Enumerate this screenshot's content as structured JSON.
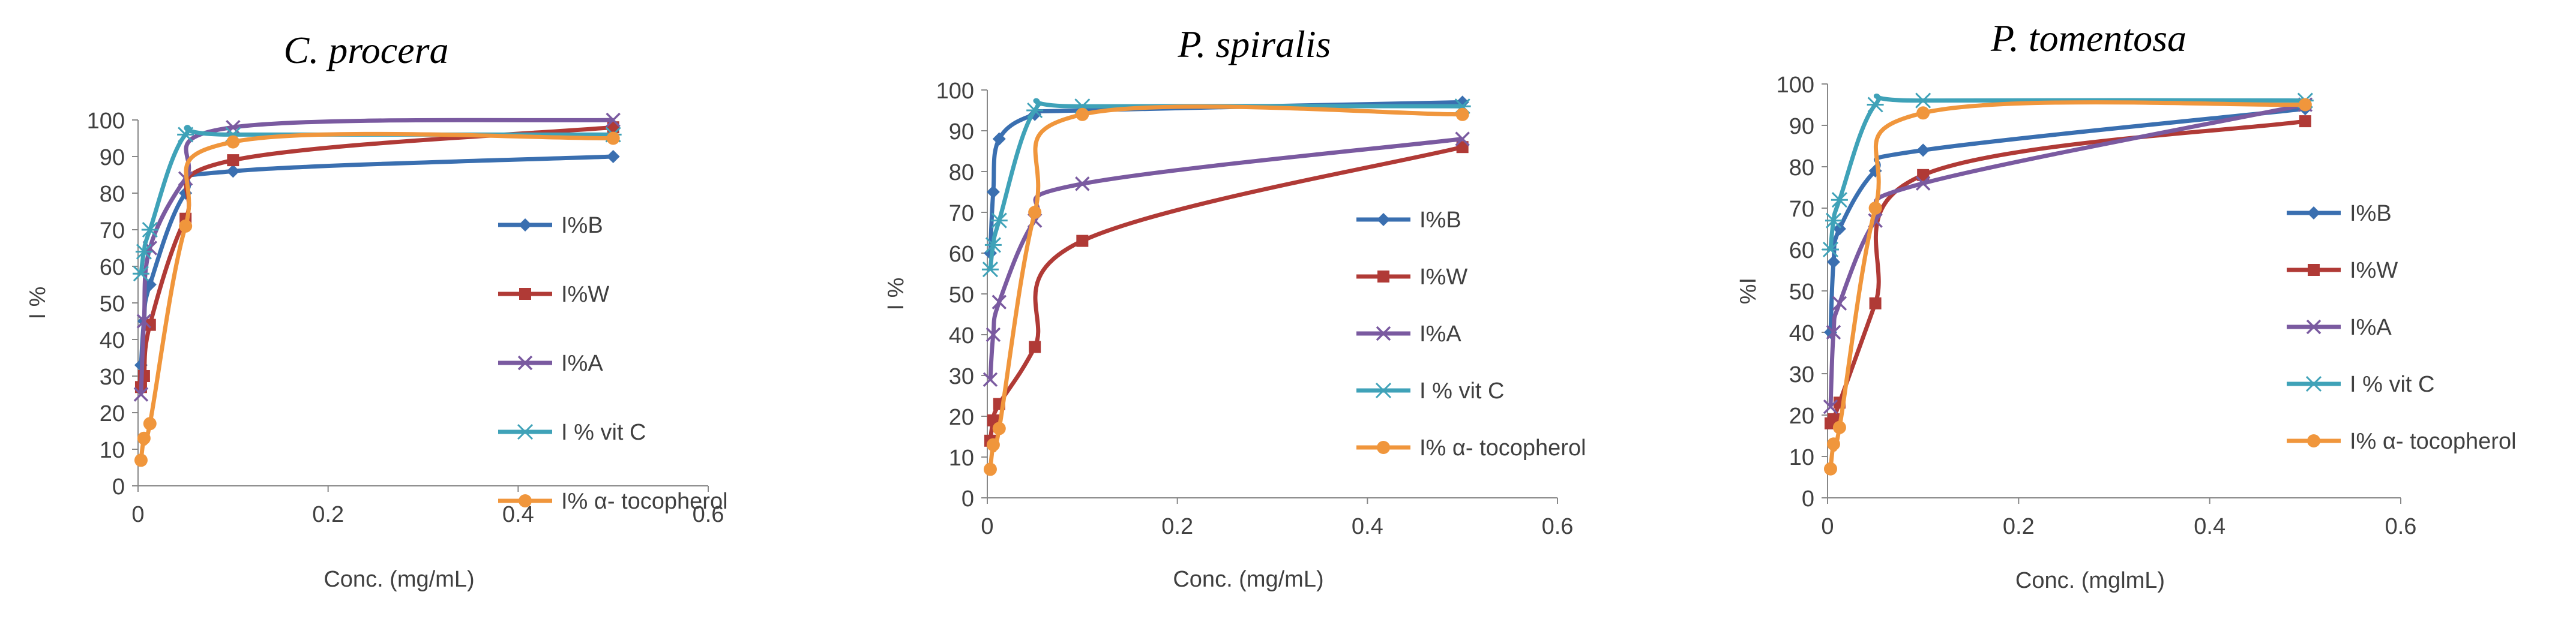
{
  "chart_data": [
    {
      "type": "line",
      "title": "C. procera",
      "xlabel": "Conc. (mg/mL)",
      "ylabel": "I %",
      "xlim": [
        0,
        0.6
      ],
      "ylim": [
        0,
        100
      ],
      "xticks": [
        0,
        0.2,
        0.4,
        0.6
      ],
      "xtick_labels": [
        "0",
        "0.2",
        "0.4",
        "0.6"
      ],
      "yticks": [
        0,
        10,
        20,
        30,
        40,
        50,
        60,
        70,
        80,
        90,
        100
      ],
      "ytick_labels": [
        "0",
        "10",
        "20",
        "30",
        "40",
        "50",
        "60",
        "70",
        "80",
        "90",
        "100"
      ],
      "legend_position": "right",
      "series": [
        {
          "name": "I%B",
          "color": "#3a6fb0",
          "marker": "diamond",
          "x": [
            0.003125,
            0.00625,
            0.0125,
            0.05,
            0.1,
            0.5
          ],
          "y": [
            33,
            45,
            55,
            80,
            86,
            90
          ]
        },
        {
          "name": "I%W",
          "color": "#b03a36",
          "marker": "square",
          "x": [
            0.003125,
            0.00625,
            0.0125,
            0.05,
            0.1,
            0.5
          ],
          "y": [
            27,
            30,
            44,
            73,
            89,
            98
          ]
        },
        {
          "name": "I%A",
          "color": "#7a5aa0",
          "marker": "x",
          "x": [
            0.003125,
            0.00625,
            0.0125,
            0.05,
            0.1,
            0.5
          ],
          "y": [
            25,
            45,
            65,
            84,
            98,
            100
          ]
        },
        {
          "name": "I % vit C",
          "color": "#3fa2b8",
          "marker": "asterisk",
          "x": [
            0.003125,
            0.00625,
            0.0125,
            0.05,
            0.1,
            0.5
          ],
          "y": [
            58,
            64,
            70,
            96,
            96,
            96
          ]
        },
        {
          "name": "I% α- tocopherol",
          "color": "#f0963c",
          "marker": "circle",
          "x": [
            0.003125,
            0.00625,
            0.0125,
            0.05,
            0.1,
            0.5
          ],
          "y": [
            7,
            13,
            17,
            71,
            94,
            95
          ]
        }
      ]
    },
    {
      "type": "line",
      "title": "P. spiralis",
      "xlabel": "Conc. (mg/mL)",
      "ylabel": "I %",
      "xlim": [
        0,
        0.6
      ],
      "ylim": [
        0,
        100
      ],
      "xticks": [
        0,
        0.2,
        0.4,
        0.6
      ],
      "xtick_labels": [
        "0",
        "0.2",
        "0.4",
        "0.6"
      ],
      "yticks": [
        0,
        10,
        20,
        30,
        40,
        50,
        60,
        70,
        80,
        90,
        100
      ],
      "ytick_labels": [
        "0",
        "10",
        "20",
        "30",
        "40",
        "50",
        "60",
        "70",
        "80",
        "90",
        "100"
      ],
      "legend_position": "right",
      "series": [
        {
          "name": "I%B",
          "color": "#3a6fb0",
          "marker": "diamond",
          "x": [
            0.003125,
            0.00625,
            0.0125,
            0.05,
            0.1,
            0.5
          ],
          "y": [
            60,
            75,
            88,
            94,
            95,
            97
          ]
        },
        {
          "name": "I%W",
          "color": "#b03a36",
          "marker": "square",
          "x": [
            0.003125,
            0.00625,
            0.0125,
            0.05,
            0.1,
            0.5
          ],
          "y": [
            14,
            19,
            23,
            37,
            63,
            86
          ]
        },
        {
          "name": "I%A",
          "color": "#7a5aa0",
          "marker": "x",
          "x": [
            0.003125,
            0.00625,
            0.0125,
            0.05,
            0.1,
            0.5
          ],
          "y": [
            29,
            40,
            48,
            68,
            77,
            88
          ]
        },
        {
          "name": "I % vit C",
          "color": "#3fa2b8",
          "marker": "asterisk",
          "x": [
            0.003125,
            0.00625,
            0.0125,
            0.05,
            0.1,
            0.5
          ],
          "y": [
            56,
            62,
            68,
            95,
            96,
            96
          ]
        },
        {
          "name": "I% α- tocopherol",
          "color": "#f0963c",
          "marker": "circle",
          "x": [
            0.003125,
            0.00625,
            0.0125,
            0.05,
            0.1,
            0.5
          ],
          "y": [
            7,
            13,
            17,
            70,
            94,
            94
          ]
        }
      ]
    },
    {
      "type": "line",
      "title": "P. tomentosa",
      "xlabel": "Conc. (mglmL)",
      "ylabel": "%I",
      "xlim": [
        0,
        0.6
      ],
      "ylim": [
        0,
        100
      ],
      "xticks": [
        0,
        0.2,
        0.4,
        0.6
      ],
      "xtick_labels": [
        "0",
        "0.2",
        "0.4",
        "0.6"
      ],
      "yticks": [
        0,
        10,
        20,
        30,
        40,
        50,
        60,
        70,
        80,
        90,
        100
      ],
      "ytick_labels": [
        "0",
        "10",
        "20",
        "30",
        "40",
        "50",
        "60",
        "70",
        "80",
        "90",
        "100"
      ],
      "legend_position": "right",
      "series": [
        {
          "name": "I%B",
          "color": "#3a6fb0",
          "marker": "diamond",
          "x": [
            0.003125,
            0.00625,
            0.0125,
            0.05,
            0.1,
            0.5
          ],
          "y": [
            40,
            57,
            65,
            79,
            84,
            94
          ]
        },
        {
          "name": "I%W",
          "color": "#b03a36",
          "marker": "square",
          "x": [
            0.003125,
            0.00625,
            0.0125,
            0.05,
            0.1,
            0.5
          ],
          "y": [
            18,
            19,
            23,
            47,
            78,
            91
          ]
        },
        {
          "name": "I%A",
          "color": "#7a5aa0",
          "marker": "x",
          "x": [
            0.003125,
            0.00625,
            0.0125,
            0.05,
            0.1,
            0.5
          ],
          "y": [
            22,
            40,
            47,
            67,
            76,
            95
          ]
        },
        {
          "name": "I % vit C",
          "color": "#3fa2b8",
          "marker": "asterisk",
          "x": [
            0.003125,
            0.00625,
            0.0125,
            0.05,
            0.1,
            0.5
          ],
          "y": [
            60,
            67,
            72,
            95,
            96,
            96
          ]
        },
        {
          "name": "I% α- tocopherol",
          "color": "#f0963c",
          "marker": "circle",
          "x": [
            0.003125,
            0.00625,
            0.0125,
            0.05,
            0.1,
            0.5
          ],
          "y": [
            7,
            13,
            17,
            70,
            93,
            95
          ]
        }
      ]
    }
  ]
}
